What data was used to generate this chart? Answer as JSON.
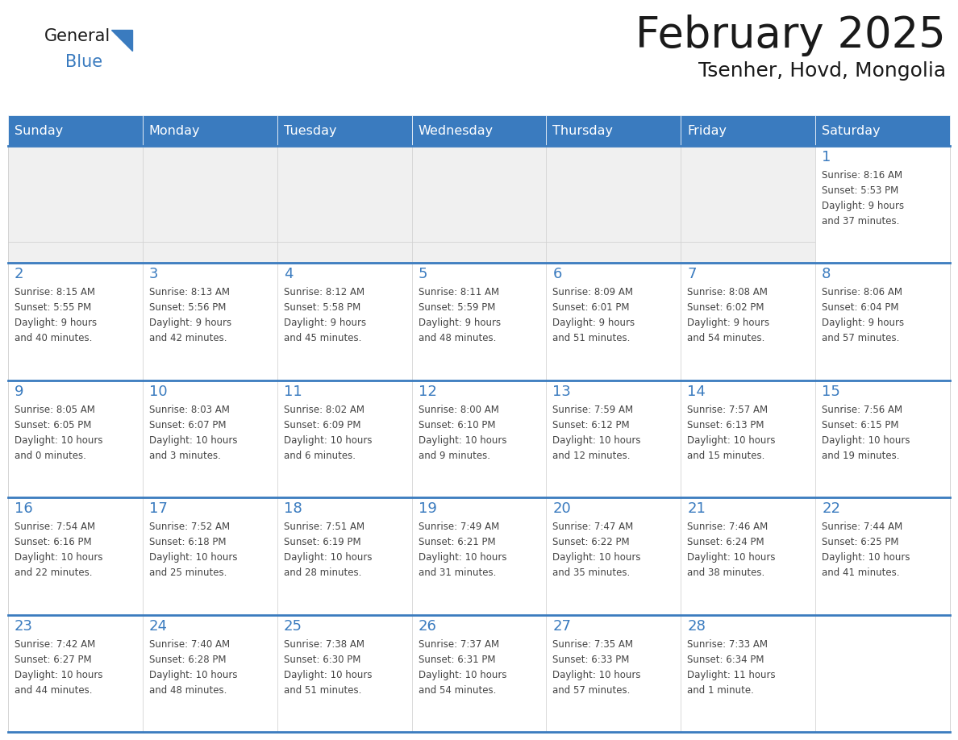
{
  "title": "February 2025",
  "subtitle": "Tsenher, Hovd, Mongolia",
  "days_of_week": [
    "Sunday",
    "Monday",
    "Tuesday",
    "Wednesday",
    "Thursday",
    "Friday",
    "Saturday"
  ],
  "header_bg": "#3a7bbf",
  "header_text": "#ffffff",
  "cell_bg": "#ffffff",
  "cell_top_bg": "#f0f0f0",
  "border_color": "#3a7bbf",
  "day_num_color": "#3a7bbf",
  "text_color": "#444444",
  "title_color": "#1a1a1a",
  "logo_triangle_color": "#3a7bbf",
  "logo_blue_color": "#3a7bbf",
  "logo_general_color": "#1a1a1a",
  "calendar_data": [
    [
      {
        "day": "",
        "info": ""
      },
      {
        "day": "",
        "info": ""
      },
      {
        "day": "",
        "info": ""
      },
      {
        "day": "",
        "info": ""
      },
      {
        "day": "",
        "info": ""
      },
      {
        "day": "",
        "info": ""
      },
      {
        "day": "1",
        "info": "Sunrise: 8:16 AM\nSunset: 5:53 PM\nDaylight: 9 hours\nand 37 minutes."
      }
    ],
    [
      {
        "day": "2",
        "info": "Sunrise: 8:15 AM\nSunset: 5:55 PM\nDaylight: 9 hours\nand 40 minutes."
      },
      {
        "day": "3",
        "info": "Sunrise: 8:13 AM\nSunset: 5:56 PM\nDaylight: 9 hours\nand 42 minutes."
      },
      {
        "day": "4",
        "info": "Sunrise: 8:12 AM\nSunset: 5:58 PM\nDaylight: 9 hours\nand 45 minutes."
      },
      {
        "day": "5",
        "info": "Sunrise: 8:11 AM\nSunset: 5:59 PM\nDaylight: 9 hours\nand 48 minutes."
      },
      {
        "day": "6",
        "info": "Sunrise: 8:09 AM\nSunset: 6:01 PM\nDaylight: 9 hours\nand 51 minutes."
      },
      {
        "day": "7",
        "info": "Sunrise: 8:08 AM\nSunset: 6:02 PM\nDaylight: 9 hours\nand 54 minutes."
      },
      {
        "day": "8",
        "info": "Sunrise: 8:06 AM\nSunset: 6:04 PM\nDaylight: 9 hours\nand 57 minutes."
      }
    ],
    [
      {
        "day": "9",
        "info": "Sunrise: 8:05 AM\nSunset: 6:05 PM\nDaylight: 10 hours\nand 0 minutes."
      },
      {
        "day": "10",
        "info": "Sunrise: 8:03 AM\nSunset: 6:07 PM\nDaylight: 10 hours\nand 3 minutes."
      },
      {
        "day": "11",
        "info": "Sunrise: 8:02 AM\nSunset: 6:09 PM\nDaylight: 10 hours\nand 6 minutes."
      },
      {
        "day": "12",
        "info": "Sunrise: 8:00 AM\nSunset: 6:10 PM\nDaylight: 10 hours\nand 9 minutes."
      },
      {
        "day": "13",
        "info": "Sunrise: 7:59 AM\nSunset: 6:12 PM\nDaylight: 10 hours\nand 12 minutes."
      },
      {
        "day": "14",
        "info": "Sunrise: 7:57 AM\nSunset: 6:13 PM\nDaylight: 10 hours\nand 15 minutes."
      },
      {
        "day": "15",
        "info": "Sunrise: 7:56 AM\nSunset: 6:15 PM\nDaylight: 10 hours\nand 19 minutes."
      }
    ],
    [
      {
        "day": "16",
        "info": "Sunrise: 7:54 AM\nSunset: 6:16 PM\nDaylight: 10 hours\nand 22 minutes."
      },
      {
        "day": "17",
        "info": "Sunrise: 7:52 AM\nSunset: 6:18 PM\nDaylight: 10 hours\nand 25 minutes."
      },
      {
        "day": "18",
        "info": "Sunrise: 7:51 AM\nSunset: 6:19 PM\nDaylight: 10 hours\nand 28 minutes."
      },
      {
        "day": "19",
        "info": "Sunrise: 7:49 AM\nSunset: 6:21 PM\nDaylight: 10 hours\nand 31 minutes."
      },
      {
        "day": "20",
        "info": "Sunrise: 7:47 AM\nSunset: 6:22 PM\nDaylight: 10 hours\nand 35 minutes."
      },
      {
        "day": "21",
        "info": "Sunrise: 7:46 AM\nSunset: 6:24 PM\nDaylight: 10 hours\nand 38 minutes."
      },
      {
        "day": "22",
        "info": "Sunrise: 7:44 AM\nSunset: 6:25 PM\nDaylight: 10 hours\nand 41 minutes."
      }
    ],
    [
      {
        "day": "23",
        "info": "Sunrise: 7:42 AM\nSunset: 6:27 PM\nDaylight: 10 hours\nand 44 minutes."
      },
      {
        "day": "24",
        "info": "Sunrise: 7:40 AM\nSunset: 6:28 PM\nDaylight: 10 hours\nand 48 minutes."
      },
      {
        "day": "25",
        "info": "Sunrise: 7:38 AM\nSunset: 6:30 PM\nDaylight: 10 hours\nand 51 minutes."
      },
      {
        "day": "26",
        "info": "Sunrise: 7:37 AM\nSunset: 6:31 PM\nDaylight: 10 hours\nand 54 minutes."
      },
      {
        "day": "27",
        "info": "Sunrise: 7:35 AM\nSunset: 6:33 PM\nDaylight: 10 hours\nand 57 minutes."
      },
      {
        "day": "28",
        "info": "Sunrise: 7:33 AM\nSunset: 6:34 PM\nDaylight: 11 hours\nand 1 minute."
      },
      {
        "day": "",
        "info": ""
      }
    ]
  ]
}
